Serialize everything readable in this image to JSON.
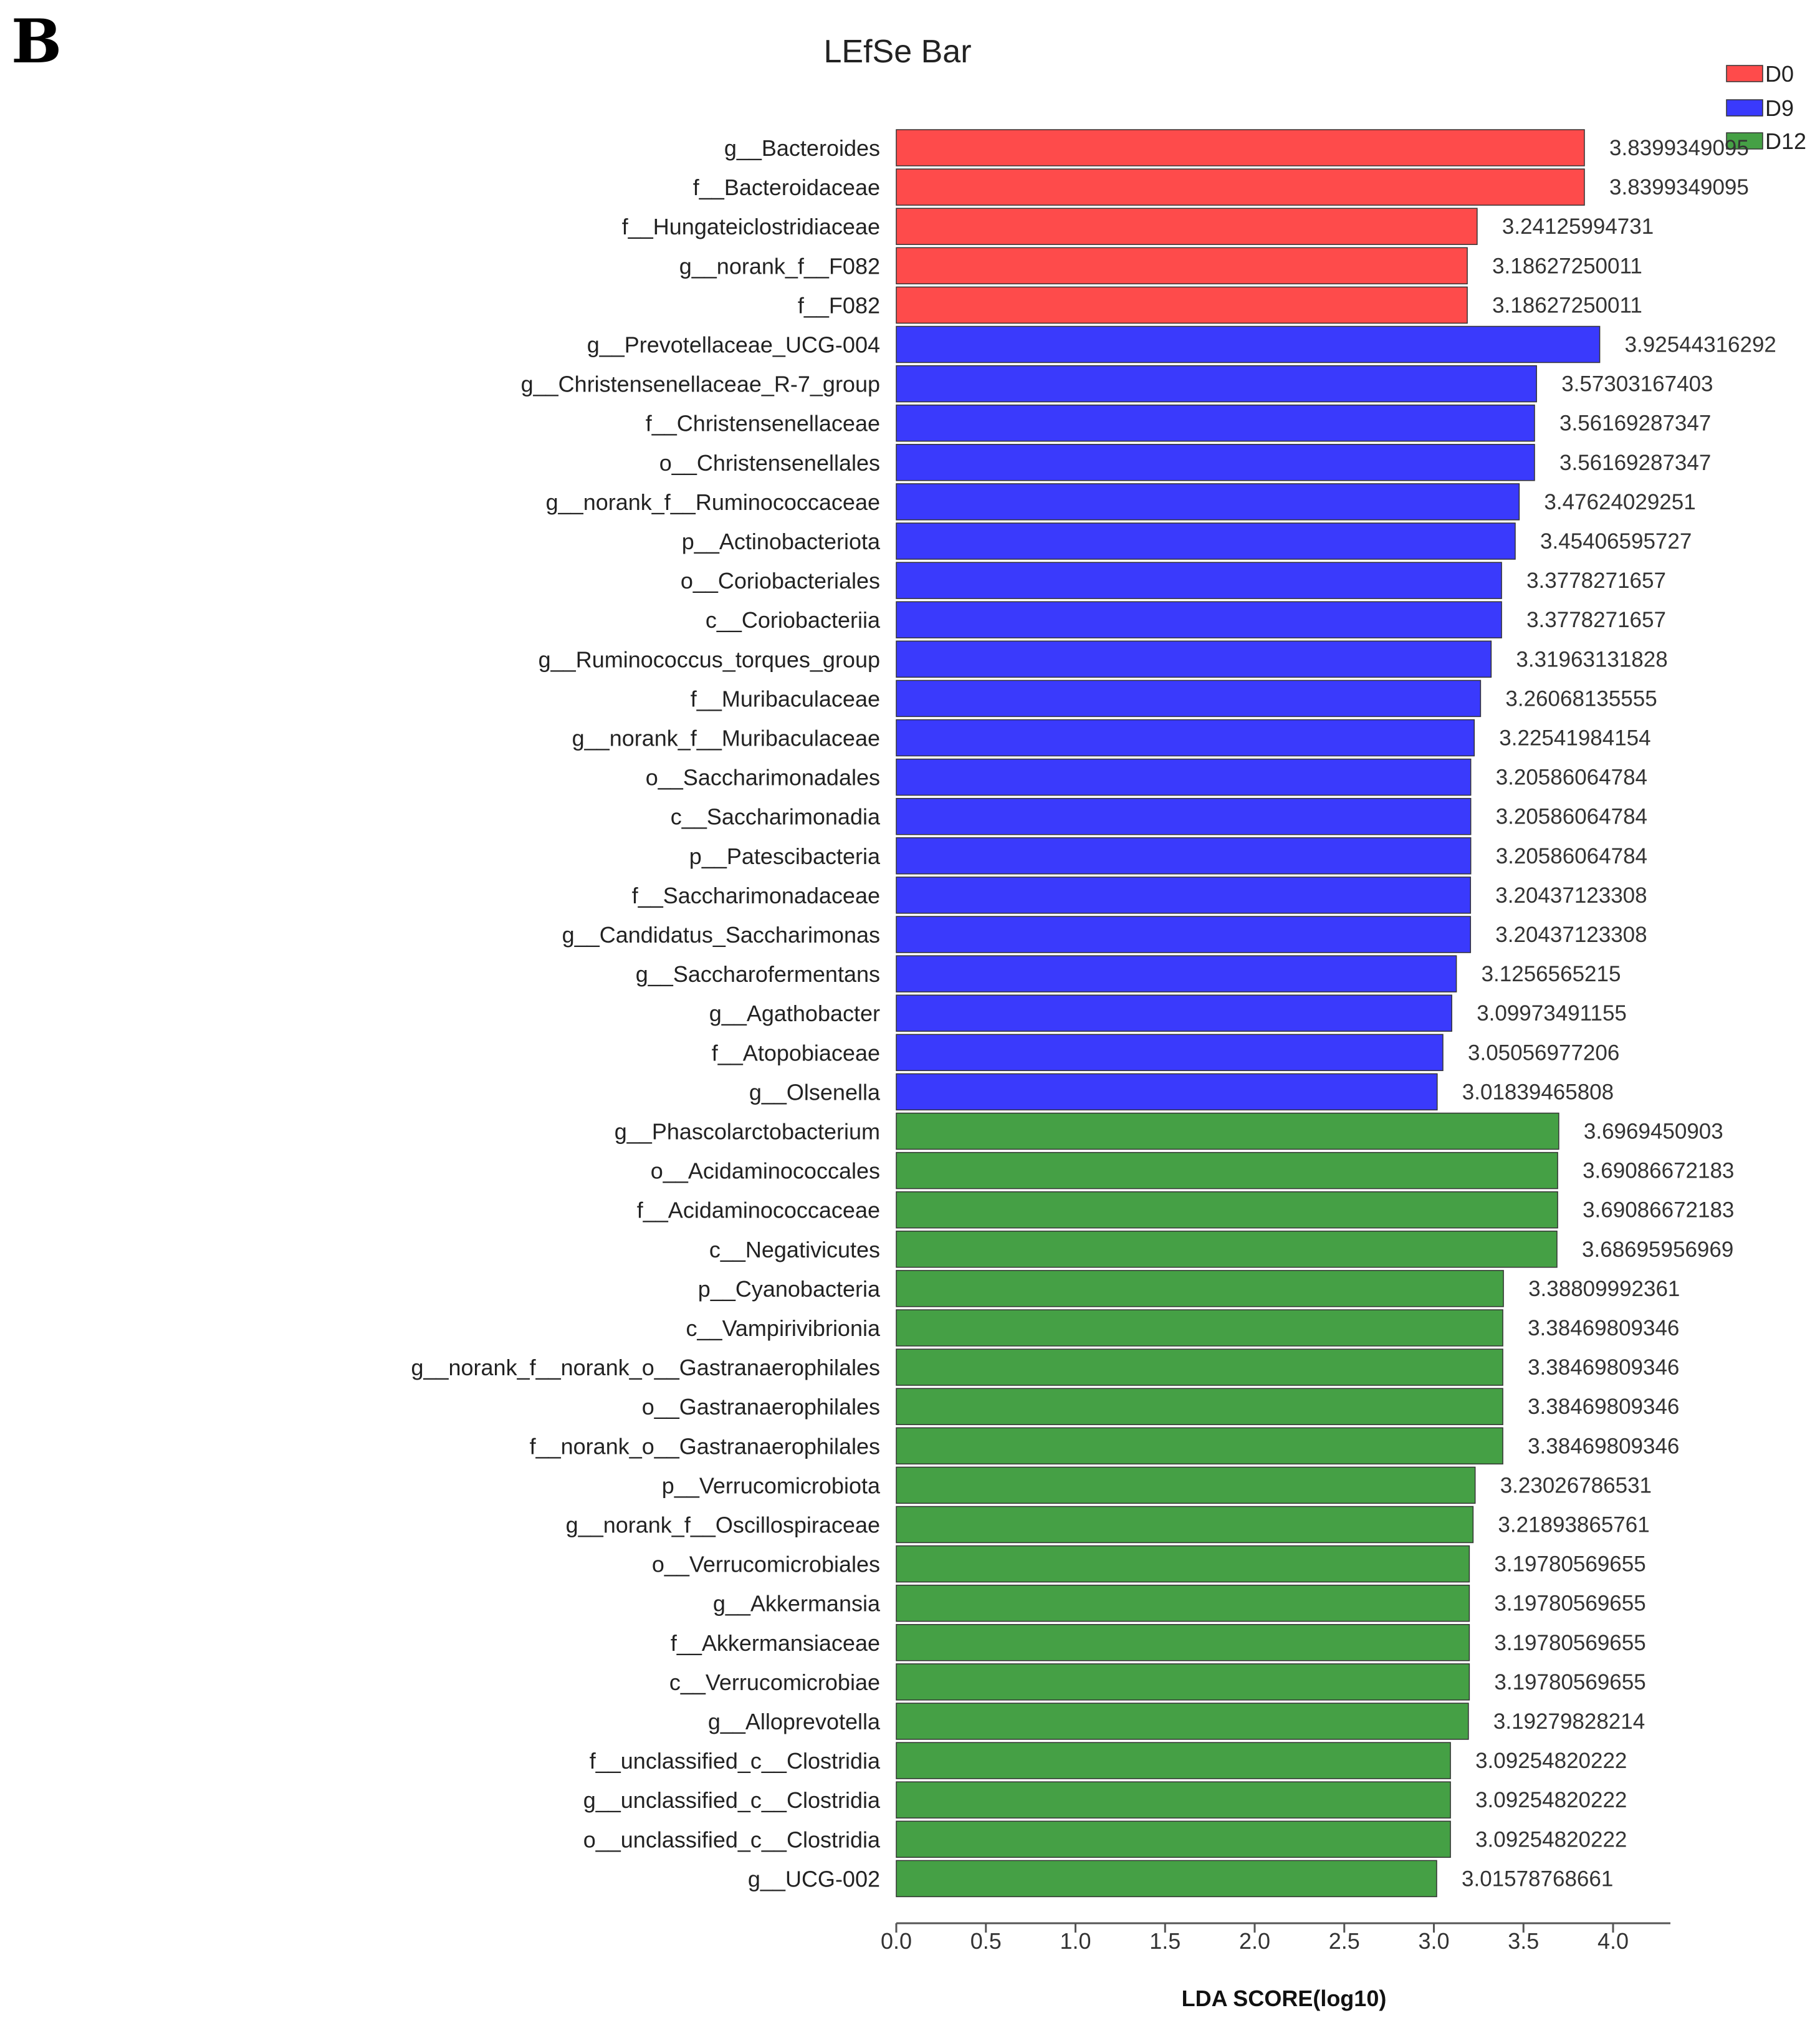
{
  "panel_letter": "B",
  "colors": {
    "D0": "#fe4b4b",
    "D9": "#3a3afc",
    "D12": "#45a045"
  },
  "chart_data": {
    "type": "bar",
    "orientation": "horizontal",
    "title": "LEfSe Bar",
    "xlabel": "LDA SCORE(log10)",
    "ylabel": "",
    "xlim": [
      0,
      4.3
    ],
    "xticks": [
      "0.0",
      "0.5",
      "1.0",
      "1.5",
      "2.0",
      "2.5",
      "3.0",
      "3.5",
      "4.0"
    ],
    "grid": false,
    "legend_position": "top-right",
    "legend": [
      "D0",
      "D9",
      "D12"
    ],
    "categories": [
      "g__Bacteroides",
      "f__Bacteroidaceae",
      "f__Hungateiclostridiaceae",
      "g__norank_f__F082",
      "f__F082",
      "g__Prevotellaceae_UCG-004",
      "g__Christensenellaceae_R-7_group",
      "f__Christensenellaceae",
      "o__Christensenellales",
      "g__norank_f__Ruminococcaceae",
      "p__Actinobacteriota",
      "o__Coriobacteriales",
      "c__Coriobacteriia",
      "g__Ruminococcus_torques_group",
      "f__Muribaculaceae",
      "g__norank_f__Muribaculaceae",
      "o__Saccharimonadales",
      "c__Saccharimonadia",
      "p__Patescibacteria",
      "f__Saccharimonadaceae",
      "g__Candidatus_Saccharimonas",
      "g__Saccharofermentans",
      "g__Agathobacter",
      "f__Atopobiaceae",
      "g__Olsenella",
      "g__Phascolarctobacterium",
      "o__Acidaminococcales",
      "f__Acidaminococcaceae",
      "c__Negativicutes",
      "p__Cyanobacteria",
      "c__Vampirivibrionia",
      "g__norank_f__norank_o__Gastranaerophilales",
      "o__Gastranaerophilales",
      "f__norank_o__Gastranaerophilales",
      "p__Verrucomicrobiota",
      "g__norank_f__Oscillospiraceae",
      "o__Verrucomicrobiales",
      "g__Akkermansia",
      "f__Akkermansiaceae",
      "c__Verrucomicrobiae",
      "g__Alloprevotella",
      "f__unclassified_c__Clostridia",
      "g__unclassified_c__Clostridia",
      "o__unclassified_c__Clostridia",
      "g__UCG-002"
    ],
    "values": [
      3.8399349095,
      3.8399349095,
      3.24125994731,
      3.18627250011,
      3.18627250011,
      3.92544316292,
      3.57303167403,
      3.56169287347,
      3.56169287347,
      3.47624029251,
      3.45406595727,
      3.3778271657,
      3.3778271657,
      3.31963131828,
      3.26068135555,
      3.22541984154,
      3.20586064784,
      3.20586064784,
      3.20586064784,
      3.20437123308,
      3.20437123308,
      3.1256565215,
      3.09973491155,
      3.05056977206,
      3.01839465808,
      3.6969450903,
      3.69086672183,
      3.69086672183,
      3.68695956969,
      3.38809992361,
      3.38469809346,
      3.38469809346,
      3.38469809346,
      3.38469809346,
      3.23026786531,
      3.21893865761,
      3.19780569655,
      3.19780569655,
      3.19780569655,
      3.19780569655,
      3.19279828214,
      3.09254820222,
      3.09254820222,
      3.09254820222,
      3.01578768661
    ],
    "value_labels": [
      "3.8399349095",
      "3.8399349095",
      "3.24125994731",
      "3.18627250011",
      "3.18627250011",
      "3.92544316292",
      "3.57303167403",
      "3.56169287347",
      "3.56169287347",
      "3.47624029251",
      "3.45406595727",
      "3.3778271657",
      "3.3778271657",
      "3.31963131828",
      "3.26068135555",
      "3.22541984154",
      "3.20586064784",
      "3.20586064784",
      "3.20586064784",
      "3.20437123308",
      "3.20437123308",
      "3.1256565215",
      "3.09973491155",
      "3.05056977206",
      "3.01839465808",
      "3.6969450903",
      "3.69086672183",
      "3.69086672183",
      "3.68695956969",
      "3.38809992361",
      "3.38469809346",
      "3.38469809346",
      "3.38469809346",
      "3.38469809346",
      "3.23026786531",
      "3.21893865761",
      "3.19780569655",
      "3.19780569655",
      "3.19780569655",
      "3.19780569655",
      "3.19279828214",
      "3.09254820222",
      "3.09254820222",
      "3.09254820222",
      "3.01578768661"
    ],
    "groups": [
      "D0",
      "D0",
      "D0",
      "D0",
      "D0",
      "D9",
      "D9",
      "D9",
      "D9",
      "D9",
      "D9",
      "D9",
      "D9",
      "D9",
      "D9",
      "D9",
      "D9",
      "D9",
      "D9",
      "D9",
      "D9",
      "D9",
      "D9",
      "D9",
      "D9",
      "D12",
      "D12",
      "D12",
      "D12",
      "D12",
      "D12",
      "D12",
      "D12",
      "D12",
      "D12",
      "D12",
      "D12",
      "D12",
      "D12",
      "D12",
      "D12",
      "D12",
      "D12",
      "D12",
      "D12"
    ]
  }
}
